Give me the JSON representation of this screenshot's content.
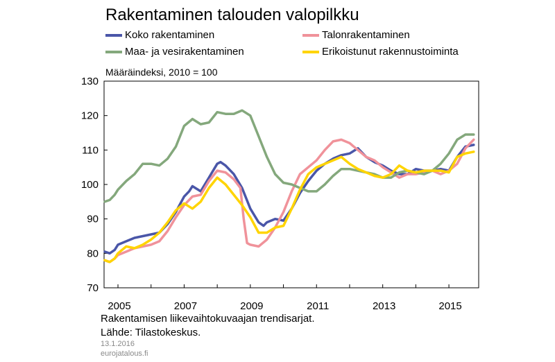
{
  "chart_data": {
    "type": "line",
    "title": "Rakentaminen talouden valopilkku",
    "ylabel": "Määräindeksi, 2010 = 100",
    "xlabel": "",
    "ylim": [
      70,
      130
    ],
    "xlim": [
      2004.58,
      2015.9
    ],
    "yticks": [
      70,
      80,
      90,
      100,
      110,
      120,
      130
    ],
    "xticks": [
      2005,
      2007,
      2009,
      2011,
      2013,
      2015
    ],
    "grid": false,
    "legend": "top",
    "series": [
      {
        "name": "Koko rakentaminen",
        "color": "#4a56a8",
        "x": [
          2004.6,
          2004.75,
          2004.9,
          2005.0,
          2005.25,
          2005.5,
          2005.75,
          2006.0,
          2006.25,
          2006.5,
          2006.75,
          2007.0,
          2007.15,
          2007.25,
          2007.5,
          2007.75,
          2008.0,
          2008.1,
          2008.25,
          2008.5,
          2008.75,
          2009.0,
          2009.25,
          2009.4,
          2009.5,
          2009.75,
          2010.0,
          2010.25,
          2010.5,
          2010.75,
          2011.0,
          2011.25,
          2011.5,
          2011.75,
          2012.0,
          2012.25,
          2012.5,
          2012.75,
          2013.0,
          2013.25,
          2013.5,
          2013.75,
          2014.0,
          2014.25,
          2014.5,
          2014.75,
          2015.0,
          2015.25,
          2015.5,
          2015.75
        ],
        "values": [
          80.5,
          80.0,
          81.0,
          82.5,
          83.5,
          84.5,
          85.0,
          85.5,
          86.0,
          88.5,
          92.0,
          96.5,
          98.0,
          99.5,
          98.0,
          102.0,
          106.0,
          106.5,
          105.5,
          103.0,
          99.0,
          93.0,
          89.0,
          88.0,
          89.0,
          90.0,
          89.5,
          93.0,
          97.5,
          101.0,
          104.0,
          106.0,
          107.5,
          108.5,
          109.0,
          110.5,
          108.0,
          106.5,
          105.5,
          104.0,
          103.0,
          103.0,
          104.5,
          104.0,
          104.0,
          104.5,
          104.0,
          108.0,
          111.0,
          111.5
        ]
      },
      {
        "name": "Talonrakentaminen",
        "color": "#f0929a",
        "x": [
          2004.6,
          2004.75,
          2004.9,
          2005.0,
          2005.25,
          2005.5,
          2005.75,
          2006.0,
          2006.25,
          2006.5,
          2006.75,
          2007.0,
          2007.25,
          2007.5,
          2007.75,
          2008.0,
          2008.25,
          2008.5,
          2008.7,
          2008.8,
          2008.9,
          2009.0,
          2009.25,
          2009.5,
          2009.75,
          2010.0,
          2010.25,
          2010.5,
          2010.75,
          2011.0,
          2011.25,
          2011.5,
          2011.75,
          2012.0,
          2012.25,
          2012.5,
          2012.75,
          2013.0,
          2013.25,
          2013.5,
          2013.75,
          2014.0,
          2014.25,
          2014.5,
          2014.75,
          2015.0,
          2015.25,
          2015.5,
          2015.75
        ],
        "values": [
          78.0,
          77.5,
          78.5,
          79.5,
          80.5,
          81.5,
          82.0,
          82.5,
          83.5,
          86.5,
          90.5,
          94.0,
          96.5,
          97.0,
          101.0,
          104.0,
          103.5,
          101.5,
          99.0,
          90.0,
          83.0,
          82.5,
          82.0,
          84.0,
          87.5,
          92.0,
          98.0,
          103.0,
          105.0,
          107.0,
          110.0,
          112.5,
          113.0,
          112.0,
          110.0,
          108.0,
          107.0,
          105.0,
          103.5,
          102.0,
          103.0,
          103.0,
          103.5,
          104.0,
          103.0,
          104.0,
          106.0,
          110.5,
          113.0
        ]
      },
      {
        "name": "Maa- ja vesirakentaminen",
        "color": "#84a87c",
        "x": [
          2004.6,
          2004.75,
          2004.9,
          2005.0,
          2005.25,
          2005.5,
          2005.75,
          2006.0,
          2006.25,
          2006.5,
          2006.75,
          2007.0,
          2007.25,
          2007.5,
          2007.75,
          2008.0,
          2008.25,
          2008.5,
          2008.75,
          2009.0,
          2009.25,
          2009.5,
          2009.75,
          2010.0,
          2010.25,
          2010.5,
          2010.75,
          2011.0,
          2011.25,
          2011.5,
          2011.75,
          2012.0,
          2012.25,
          2012.5,
          2012.75,
          2013.0,
          2013.25,
          2013.5,
          2013.75,
          2014.0,
          2014.25,
          2014.5,
          2014.75,
          2015.0,
          2015.25,
          2015.5,
          2015.75
        ],
        "values": [
          95.0,
          95.5,
          97.0,
          98.5,
          101.0,
          103.0,
          106.0,
          106.0,
          105.5,
          107.5,
          111.0,
          117.0,
          119.0,
          117.5,
          118.0,
          121.0,
          120.5,
          120.5,
          121.5,
          120.0,
          114.0,
          108.0,
          103.0,
          100.5,
          100.0,
          99.0,
          98.0,
          98.0,
          100.0,
          102.5,
          104.5,
          104.5,
          104.0,
          103.5,
          103.0,
          102.0,
          102.0,
          103.5,
          104.0,
          103.5,
          103.0,
          104.0,
          106.0,
          109.0,
          113.0,
          114.5,
          114.5
        ]
      },
      {
        "name": "Erikoistunut rakennustoiminta",
        "color": "#ffd400",
        "x": [
          2004.6,
          2004.75,
          2004.9,
          2005.0,
          2005.25,
          2005.5,
          2005.75,
          2006.0,
          2006.25,
          2006.5,
          2006.75,
          2007.0,
          2007.25,
          2007.5,
          2007.75,
          2008.0,
          2008.25,
          2008.5,
          2008.75,
          2009.0,
          2009.25,
          2009.5,
          2009.75,
          2010.0,
          2010.25,
          2010.5,
          2010.75,
          2011.0,
          2011.25,
          2011.5,
          2011.75,
          2012.0,
          2012.25,
          2012.5,
          2012.75,
          2013.0,
          2013.25,
          2013.5,
          2013.75,
          2014.0,
          2014.25,
          2014.5,
          2014.75,
          2015.0,
          2015.25,
          2015.5,
          2015.75
        ],
        "values": [
          78.0,
          77.5,
          78.5,
          80.0,
          82.0,
          81.5,
          82.5,
          84.0,
          86.0,
          89.0,
          92.5,
          94.5,
          93.0,
          95.0,
          99.0,
          102.0,
          100.0,
          97.0,
          94.0,
          90.5,
          86.0,
          86.0,
          87.5,
          88.0,
          93.0,
          98.5,
          103.0,
          105.0,
          106.0,
          107.0,
          108.0,
          106.0,
          104.5,
          103.5,
          102.5,
          102.0,
          103.0,
          105.5,
          104.0,
          103.5,
          104.0,
          104.0,
          104.0,
          103.5,
          108.0,
          109.0,
          109.5
        ]
      }
    ]
  },
  "footnotes": {
    "line1": "Rakentamisen liikevaihtokuvaajan trendisarjat.",
    "line2": "Lähde: Tilastokeskus.",
    "date": "13.1.2016",
    "site": "eurojatalous.fi"
  }
}
